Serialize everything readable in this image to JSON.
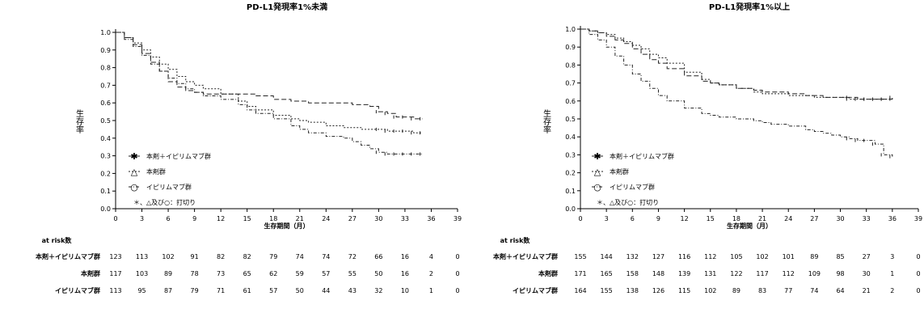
{
  "chart_data": [
    {
      "type": "line",
      "title": "PD-L1発現率1%未満",
      "xlabel": "生存期間（月）",
      "ylabel": "生存率",
      "xlim": [
        0,
        39
      ],
      "ylim": [
        0.0,
        1.0
      ],
      "xticks": [
        "0",
        "3",
        "6",
        "9",
        "12",
        "15",
        "18",
        "21",
        "24",
        "27",
        "30",
        "33",
        "36",
        "39"
      ],
      "yticks": [
        "0.0",
        "0.1",
        "0.2",
        "0.3",
        "0.4",
        "0.5",
        "0.6",
        "0.7",
        "0.8",
        "0.9",
        "1.0"
      ],
      "legend_position": "bottom-left",
      "legend": [
        {
          "marker": "✱",
          "label": "本剤＋イピリムマブ群"
        },
        {
          "marker": "△",
          "label": "本剤群"
        },
        {
          "marker": "○",
          "label": "イピリムマブ群"
        },
        {
          "marker": "",
          "label": "＊、△及び○：打切り"
        }
      ],
      "series": [
        {
          "name": "本剤＋イピリムマブ群",
          "dash": "6,3",
          "x": [
            0,
            1,
            2,
            3,
            4,
            5,
            6,
            7,
            8,
            9,
            10,
            12,
            14,
            15,
            16,
            18,
            20,
            21,
            22,
            24,
            26,
            27,
            28,
            29,
            30,
            31,
            32,
            33,
            34,
            35
          ],
          "y": [
            1.0,
            0.97,
            0.93,
            0.88,
            0.83,
            0.78,
            0.72,
            0.69,
            0.67,
            0.66,
            0.65,
            0.65,
            0.65,
            0.65,
            0.64,
            0.62,
            0.61,
            0.61,
            0.6,
            0.6,
            0.6,
            0.59,
            0.59,
            0.58,
            0.55,
            0.54,
            0.52,
            0.52,
            0.51,
            0.51
          ]
        },
        {
          "name": "本剤群",
          "dash": "2,2",
          "x": [
            0,
            1,
            2,
            3,
            4,
            5,
            6,
            7,
            8,
            9,
            10,
            12,
            14,
            15,
            16,
            18,
            20,
            21,
            22,
            24,
            26,
            27,
            28,
            29,
            30,
            31,
            32,
            33,
            34,
            35
          ],
          "y": [
            1.0,
            0.97,
            0.94,
            0.9,
            0.86,
            0.82,
            0.79,
            0.75,
            0.72,
            0.7,
            0.68,
            0.65,
            0.61,
            0.58,
            0.56,
            0.53,
            0.51,
            0.5,
            0.49,
            0.47,
            0.46,
            0.46,
            0.45,
            0.45,
            0.45,
            0.44,
            0.44,
            0.44,
            0.43,
            0.43
          ]
        },
        {
          "name": "イピリムマブ群",
          "dash": "4,2,1,2",
          "x": [
            0,
            1,
            2,
            3,
            4,
            5,
            6,
            7,
            8,
            9,
            10,
            12,
            14,
            15,
            16,
            18,
            20,
            21,
            22,
            24,
            26,
            27,
            28,
            29,
            30,
            31,
            32,
            33,
            34,
            35
          ],
          "y": [
            1.0,
            0.96,
            0.92,
            0.87,
            0.82,
            0.78,
            0.74,
            0.71,
            0.68,
            0.66,
            0.64,
            0.62,
            0.59,
            0.56,
            0.54,
            0.51,
            0.47,
            0.45,
            0.43,
            0.41,
            0.4,
            0.38,
            0.36,
            0.34,
            0.32,
            0.31,
            0.31,
            0.31,
            0.31,
            0.31
          ]
        }
      ],
      "at_risk": {
        "label": "at risk数",
        "rows": [
          {
            "name": "本剤＋イピリムマブ群",
            "values": [
              "123",
              "113",
              "102",
              "91",
              "82",
              "82",
              "79",
              "74",
              "74",
              "72",
              "66",
              "16",
              "4",
              "0"
            ]
          },
          {
            "name": "本剤群",
            "values": [
              "117",
              "103",
              "89",
              "78",
              "73",
              "65",
              "62",
              "59",
              "57",
              "55",
              "50",
              "16",
              "2",
              "0"
            ]
          },
          {
            "name": "イピリムマブ群",
            "values": [
              "113",
              "95",
              "87",
              "79",
              "71",
              "61",
              "57",
              "50",
              "44",
              "43",
              "32",
              "10",
              "1",
              "0"
            ]
          }
        ]
      }
    },
    {
      "type": "line",
      "title": "PD-L1発現率1%以上",
      "xlabel": "生存期間（月）",
      "ylabel": "生存率",
      "xlim": [
        0,
        39
      ],
      "ylim": [
        0.0,
        1.0
      ],
      "xticks": [
        "0",
        "3",
        "6",
        "9",
        "12",
        "15",
        "18",
        "21",
        "24",
        "27",
        "30",
        "33",
        "36",
        "39"
      ],
      "yticks": [
        "0.0",
        "0.1",
        "0.2",
        "0.3",
        "0.4",
        "0.5",
        "0.6",
        "0.7",
        "0.8",
        "0.9",
        "1.0"
      ],
      "legend_position": "bottom-left",
      "legend": [
        {
          "marker": "✱",
          "label": "本剤＋イピリムマブ群"
        },
        {
          "marker": "△",
          "label": "本剤群"
        },
        {
          "marker": "○",
          "label": "イピリムマブ群"
        },
        {
          "marker": "",
          "label": "＊、△及び○：打切り"
        }
      ],
      "series": [
        {
          "name": "本剤＋イピリムマブ群",
          "dash": "6,3",
          "x": [
            0,
            1,
            2,
            3,
            4,
            5,
            6,
            7,
            8,
            9,
            10,
            12,
            14,
            15,
            16,
            18,
            20,
            21,
            22,
            24,
            26,
            27,
            28,
            29,
            30,
            31,
            32,
            33,
            34,
            35,
            36
          ],
          "y": [
            1.0,
            0.99,
            0.98,
            0.96,
            0.94,
            0.92,
            0.89,
            0.86,
            0.83,
            0.81,
            0.78,
            0.74,
            0.71,
            0.7,
            0.69,
            0.67,
            0.66,
            0.65,
            0.65,
            0.64,
            0.63,
            0.63,
            0.62,
            0.62,
            0.62,
            0.62,
            0.61,
            0.61,
            0.61,
            0.61,
            0.62
          ]
        },
        {
          "name": "本剤群",
          "dash": "2,2",
          "x": [
            0,
            1,
            2,
            3,
            4,
            5,
            6,
            7,
            8,
            9,
            10,
            12,
            14,
            15,
            16,
            18,
            20,
            21,
            22,
            24,
            26,
            27,
            28,
            29,
            30,
            31,
            32,
            33,
            34,
            35,
            36
          ],
          "y": [
            1.0,
            0.99,
            0.98,
            0.97,
            0.95,
            0.93,
            0.91,
            0.89,
            0.86,
            0.84,
            0.81,
            0.76,
            0.72,
            0.7,
            0.69,
            0.67,
            0.65,
            0.64,
            0.64,
            0.63,
            0.63,
            0.62,
            0.62,
            0.62,
            0.62,
            0.61,
            0.61,
            0.61,
            0.61,
            0.61,
            0.61
          ]
        },
        {
          "name": "イピリムマブ群",
          "dash": "4,2,1,2",
          "x": [
            0,
            1,
            2,
            3,
            4,
            5,
            6,
            7,
            8,
            9,
            10,
            12,
            14,
            15,
            16,
            18,
            20,
            21,
            22,
            24,
            26,
            27,
            28,
            29,
            30,
            31,
            32,
            33,
            34,
            35,
            36
          ],
          "y": [
            1.0,
            0.97,
            0.94,
            0.9,
            0.85,
            0.8,
            0.75,
            0.71,
            0.67,
            0.63,
            0.6,
            0.56,
            0.53,
            0.52,
            0.51,
            0.5,
            0.49,
            0.48,
            0.47,
            0.46,
            0.44,
            0.43,
            0.42,
            0.41,
            0.4,
            0.39,
            0.38,
            0.38,
            0.36,
            0.3,
            0.29
          ]
        }
      ],
      "at_risk": {
        "label": "at risk数",
        "rows": [
          {
            "name": "本剤＋イピリムマブ群",
            "values": [
              "155",
              "144",
              "132",
              "127",
              "116",
              "112",
              "105",
              "102",
              "101",
              "89",
              "85",
              "27",
              "3",
              "0"
            ]
          },
          {
            "name": "本剤群",
            "values": [
              "171",
              "165",
              "158",
              "148",
              "139",
              "131",
              "122",
              "117",
              "112",
              "109",
              "98",
              "30",
              "1",
              "0"
            ]
          },
          {
            "name": "イピリムマブ群",
            "values": [
              "164",
              "155",
              "138",
              "126",
              "115",
              "102",
              "89",
              "83",
              "77",
              "74",
              "64",
              "21",
              "2",
              "0"
            ]
          }
        ]
      }
    }
  ]
}
